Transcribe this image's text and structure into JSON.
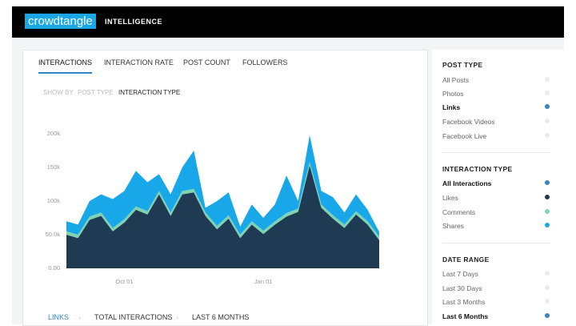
{
  "header": {
    "logo": "crowdtangle",
    "section": "INTELLIGENCE"
  },
  "tabs": [
    "INTERACTIONS",
    "INTERACTION RATE",
    "POST COUNT",
    "FOLLOWERS"
  ],
  "show_by": {
    "label": "SHOW BY",
    "options": [
      "POST TYPE",
      "INTERACTION TYPE"
    ]
  },
  "breadcrumb": [
    "LINKS",
    "TOTAL INTERACTIONS",
    "LAST 6 MONTHS"
  ],
  "sidebar": {
    "post_type": {
      "title": "POST TYPE",
      "items": [
        "All Posts",
        "Photos",
        "Links",
        "Facebook Videos",
        "Facebook Live"
      ]
    },
    "interaction_type": {
      "title": "INTERACTION TYPE",
      "items": [
        "All Interactions",
        "Likes",
        "Comments",
        "Shares"
      ]
    },
    "date_range": {
      "title": "DATE RANGE",
      "items": [
        "Last 7 Days",
        "Last 30 Days",
        "Last 3 Months",
        "Last 6 Months"
      ]
    }
  },
  "chart_data": {
    "type": "stacked_area",
    "categories": [
      null,
      null,
      null,
      null,
      null,
      "Oct 01",
      null,
      null,
      null,
      null,
      null,
      null,
      null,
      null,
      null,
      null,
      null,
      "Jan 01",
      null,
      null,
      null,
      null,
      null,
      null,
      null,
      null,
      null,
      null
    ],
    "series": [
      {
        "name": "Likes",
        "color": "#1f3b53",
        "values": [
          50000,
          45000,
          72000,
          78000,
          55000,
          68000,
          87000,
          80000,
          110000,
          78000,
          110000,
          113000,
          78000,
          58000,
          74000,
          45000,
          65000,
          51000,
          65000,
          77000,
          84000,
          153000,
          90000,
          74000,
          60000,
          80000,
          65000,
          42000
        ]
      },
      {
        "name": "Comments",
        "color": "#7fd3b0",
        "values": [
          5000,
          5000,
          5000,
          5000,
          5000,
          5000,
          5000,
          5000,
          5000,
          5000,
          5000,
          5000,
          5000,
          5000,
          5000,
          5000,
          5000,
          5000,
          5000,
          5000,
          5000,
          5000,
          5000,
          5000,
          5000,
          5000,
          5000,
          5000
        ]
      },
      {
        "name": "Shares",
        "color": "#18a8ea",
        "values": [
          15000,
          15000,
          23000,
          27000,
          43000,
          42000,
          53000,
          43000,
          25000,
          27000,
          35000,
          57000,
          7000,
          37000,
          34000,
          12000,
          25000,
          19000,
          25000,
          56000,
          11000,
          40000,
          20000,
          27000,
          18000,
          25000,
          17000,
          7000
        ]
      }
    ],
    "ylim": [
      0,
      200000
    ],
    "yticks": [
      {
        "value": 0,
        "label": "0.00"
      },
      {
        "value": 50000,
        "label": "50.0k"
      },
      {
        "value": 100000,
        "label": "100k"
      },
      {
        "value": 150000,
        "label": "150k"
      },
      {
        "value": 200000,
        "label": "200k"
      }
    ]
  }
}
